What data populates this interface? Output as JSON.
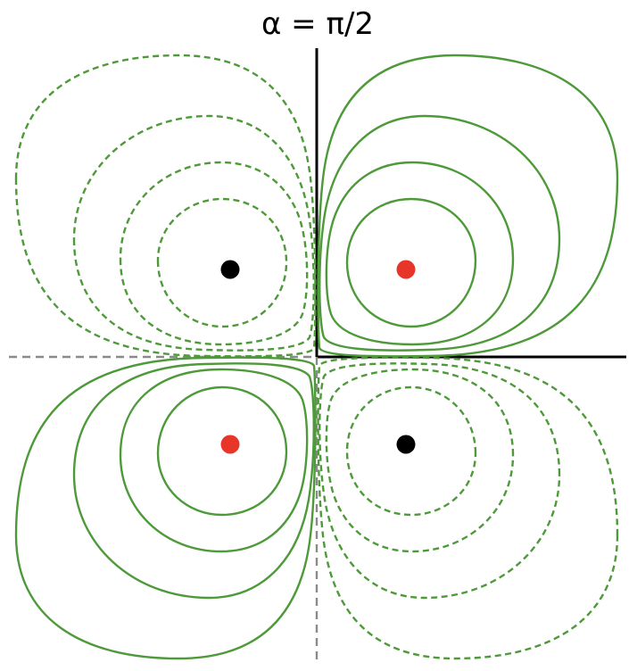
{
  "title": "α = π/2",
  "colors": {
    "contour": "#4e9a3a",
    "axis_solid": "#000000",
    "axis_dashed": "#8a8a8a",
    "charge_red": "#e8352a",
    "charge_black": "#000000"
  },
  "charges": [
    {
      "id": "upper-left",
      "color": "black"
    },
    {
      "id": "upper-right",
      "color": "red"
    },
    {
      "id": "lower-left",
      "color": "red"
    },
    {
      "id": "lower-right",
      "color": "black"
    }
  ],
  "contour_levels": 4,
  "quadrants": [
    {
      "id": "upper-right",
      "line_style": "solid"
    },
    {
      "id": "upper-left",
      "line_style": "dashed"
    },
    {
      "id": "lower-left",
      "line_style": "solid"
    },
    {
      "id": "lower-right",
      "line_style": "dashed"
    }
  ]
}
